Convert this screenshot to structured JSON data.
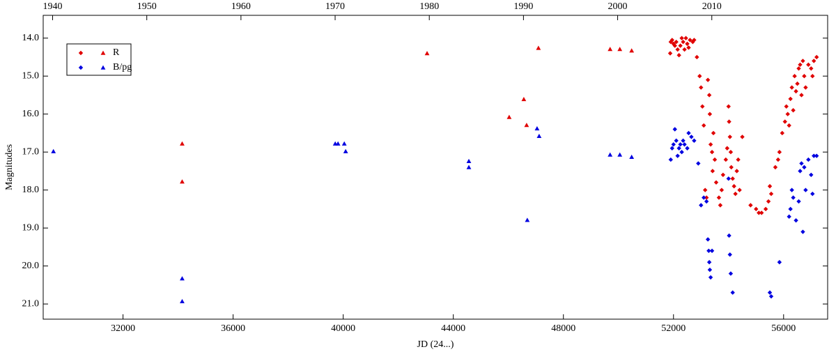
{
  "chart_data": {
    "type": "scatter",
    "xlabel": "JD (24...)",
    "ylabel": "Magnitudes",
    "xlim": [
      29100,
      57600
    ],
    "xticks": [
      32000,
      36000,
      40000,
      44000,
      48000,
      52000,
      56000
    ],
    "x2lim": [
      1939.0,
      2022.3
    ],
    "x2ticks": [
      1940,
      1950,
      1960,
      1970,
      1980,
      1990,
      2000,
      2010
    ],
    "ylim": [
      13.4,
      21.4
    ],
    "y_inverted": true,
    "yticks": [
      {
        "value": 14,
        "label": "14.0"
      },
      {
        "value": 15,
        "label": "15.0"
      },
      {
        "value": 16,
        "label": "16.0"
      },
      {
        "value": 17,
        "label": "17.0"
      },
      {
        "value": 18,
        "label": "18.0"
      },
      {
        "value": 19,
        "label": "19.0"
      },
      {
        "value": 20,
        "label": "20.0"
      },
      {
        "value": 21,
        "label": "21.0"
      }
    ],
    "legend": "upper left",
    "series": [
      {
        "name": "R",
        "color": "#e00000",
        "diamonds": {
          "x": [
            51880,
            51900,
            51950,
            52000,
            52050,
            52100,
            52150,
            52200,
            52250,
            52300,
            52350,
            52400,
            52450,
            52500,
            52550,
            52600,
            52700,
            52750,
            52850,
            52950,
            53000,
            53050,
            53100,
            53150,
            53200,
            53250,
            53300,
            53320,
            53350,
            53400,
            53420,
            53450,
            53500,
            53550,
            53650,
            53700,
            53750,
            53800,
            53900,
            53950,
            54000,
            54020,
            54050,
            54080,
            54100,
            54150,
            54200,
            54250,
            54300,
            54350,
            54400,
            54500,
            54800,
            55000,
            55100,
            55200,
            55350,
            55450,
            55500,
            55550,
            55700,
            55800,
            55850,
            55950,
            56050,
            56100,
            56150,
            56200,
            56250,
            56300,
            56350,
            56400,
            56450,
            56500,
            56550,
            56600,
            56650,
            56700,
            56750,
            56800,
            56900,
            57000,
            57050,
            57100,
            57200
          ],
          "values": [
            14.4,
            14.1,
            14.05,
            14.15,
            14.2,
            14.1,
            14.3,
            14.45,
            14.2,
            14.0,
            14.1,
            14.3,
            14.0,
            14.15,
            14.25,
            14.05,
            14.1,
            14.05,
            14.5,
            15.0,
            15.3,
            15.8,
            16.3,
            18.0,
            18.2,
            15.1,
            15.5,
            16.0,
            16.8,
            17.0,
            17.5,
            16.5,
            17.2,
            17.8,
            18.2,
            18.4,
            18.0,
            17.6,
            17.2,
            16.9,
            15.8,
            16.2,
            16.6,
            17.0,
            17.4,
            17.7,
            17.9,
            18.1,
            17.5,
            17.2,
            18.0,
            16.6,
            18.4,
            18.5,
            18.6,
            18.6,
            18.5,
            18.3,
            17.9,
            18.1,
            17.4,
            17.2,
            17.0,
            16.5,
            16.2,
            15.8,
            16.0,
            16.3,
            15.6,
            15.3,
            15.9,
            15.0,
            15.4,
            15.2,
            14.8,
            14.7,
            15.5,
            14.6,
            15.0,
            15.3,
            14.7,
            14.8,
            15.0,
            14.6,
            14.5
          ]
        },
        "triangles": {
          "x": [
            43047,
            34149,
            34149,
            46030,
            46562,
            46663,
            47093,
            49696,
            50050,
            50480
          ],
          "values": [
            14.4,
            16.78,
            17.78,
            16.08,
            15.61,
            16.29,
            14.26,
            14.29,
            14.29,
            14.33
          ]
        }
      },
      {
        "name": "B/pg",
        "color": "#0000e0",
        "diamonds": {
          "x": [
            51900,
            51950,
            52000,
            52050,
            52100,
            52150,
            52200,
            52250,
            52300,
            52350,
            52400,
            52500,
            52550,
            52650,
            52750,
            52900,
            53000,
            53100,
            53200,
            53250,
            53280,
            53300,
            53320,
            53350,
            53400,
            54000,
            54020,
            54050,
            54080,
            54150,
            55500,
            55550,
            55850,
            56200,
            56250,
            56300,
            56350,
            56450,
            56550,
            56600,
            56650,
            56700,
            56750,
            56800,
            56900,
            57000,
            57050,
            57100,
            57200
          ],
          "values": [
            17.2,
            16.9,
            16.8,
            16.4,
            16.7,
            17.1,
            16.9,
            16.8,
            17.0,
            16.7,
            16.8,
            16.9,
            16.5,
            16.6,
            16.7,
            17.3,
            18.4,
            18.2,
            18.3,
            19.3,
            19.6,
            19.9,
            20.1,
            20.3,
            19.6,
            17.7,
            19.2,
            19.7,
            20.2,
            20.7,
            20.7,
            20.8,
            19.9,
            18.7,
            18.5,
            18.0,
            18.2,
            18.8,
            18.3,
            17.5,
            17.3,
            19.1,
            17.4,
            18.0,
            17.2,
            17.6,
            18.1,
            17.1,
            17.1
          ]
        },
        "triangles": {
          "x": [
            29472,
            34149,
            34149,
            39710,
            39811,
            40039,
            40089,
            44565,
            44565,
            46688,
            47043,
            47118,
            49696,
            50050,
            50480
          ],
          "values": [
            16.98,
            20.33,
            20.93,
            16.78,
            16.78,
            16.78,
            16.98,
            17.24,
            17.4,
            18.79,
            16.38,
            16.58,
            17.07,
            17.07,
            17.13
          ]
        }
      }
    ]
  }
}
